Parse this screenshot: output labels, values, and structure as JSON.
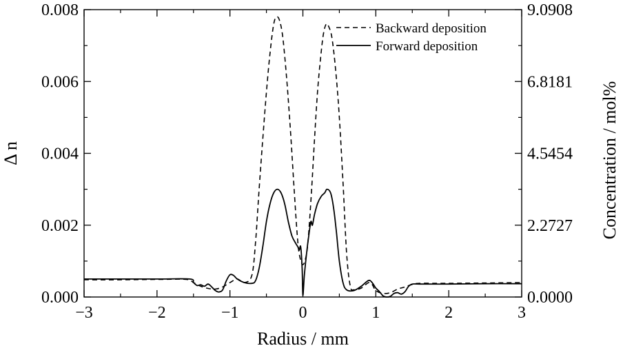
{
  "chart_data": {
    "type": "line",
    "xlabel": "Radius / mm",
    "ylabel": "Δ n",
    "ylabel_secondary": "Concentration / mol%",
    "xlim": [
      -3,
      3
    ],
    "ylim": [
      0,
      0.008
    ],
    "ylim_secondary": [
      0,
      9.0908
    ],
    "x_ticks": [
      -3,
      -2,
      -1,
      0,
      1,
      2,
      3
    ],
    "x_tick_labels": [
      "−3",
      "−2",
      "−1",
      "0",
      "1",
      "2",
      "3"
    ],
    "y_ticks": [
      0,
      0.002,
      0.004,
      0.006,
      0.008
    ],
    "y_tick_labels": [
      "0.000",
      "0.002",
      "0.004",
      "0.006",
      "0.008"
    ],
    "y2_ticks": [
      0,
      2.2727,
      4.5454,
      6.8181,
      9.0908
    ],
    "y2_tick_labels": [
      "0.0000",
      "2.2727",
      "4.5454",
      "6.8181",
      "9.0908"
    ],
    "grid": false,
    "legend_position": "top-right",
    "series": [
      {
        "name": "Backward deposition",
        "style": "dashed",
        "color": "#000000",
        "points": [
          [
            -3.0,
            0.00048
          ],
          [
            -2.5,
            0.00048
          ],
          [
            -2.0,
            0.00049
          ],
          [
            -1.6,
            0.00049
          ],
          [
            -1.5,
            0.0004
          ],
          [
            -1.4,
            0.0003
          ],
          [
            -1.3,
            0.00024
          ],
          [
            -1.2,
            0.00022
          ],
          [
            -1.1,
            0.00028
          ],
          [
            -1.0,
            0.0004
          ],
          [
            -0.9,
            0.0005
          ],
          [
            -0.8,
            0.0004
          ],
          [
            -0.7,
            0.0006
          ],
          [
            -0.65,
            0.0015
          ],
          [
            -0.6,
            0.003
          ],
          [
            -0.55,
            0.0044
          ],
          [
            -0.5,
            0.0057
          ],
          [
            -0.45,
            0.0068
          ],
          [
            -0.4,
            0.0076
          ],
          [
            -0.36,
            0.0078
          ],
          [
            -0.32,
            0.0077
          ],
          [
            -0.28,
            0.0073
          ],
          [
            -0.24,
            0.0065
          ],
          [
            -0.2,
            0.0055
          ],
          [
            -0.16,
            0.0043
          ],
          [
            -0.12,
            0.003
          ],
          [
            -0.08,
            0.0018
          ],
          [
            -0.05,
            0.0012
          ],
          [
            0.0,
            0.0009
          ],
          [
            0.05,
            0.0012
          ],
          [
            0.08,
            0.0018
          ],
          [
            0.12,
            0.003
          ],
          [
            0.16,
            0.0044
          ],
          [
            0.2,
            0.0057
          ],
          [
            0.24,
            0.0066
          ],
          [
            0.28,
            0.0073
          ],
          [
            0.32,
            0.0076
          ],
          [
            0.36,
            0.0075
          ],
          [
            0.4,
            0.0072
          ],
          [
            0.45,
            0.0063
          ],
          [
            0.5,
            0.005
          ],
          [
            0.55,
            0.0032
          ],
          [
            0.6,
            0.0012
          ],
          [
            0.65,
            0.0003
          ],
          [
            0.7,
            0.0002
          ],
          [
            0.8,
            0.00025
          ],
          [
            0.9,
            0.0004
          ],
          [
            0.95,
            0.00035
          ],
          [
            1.0,
            0.00018
          ],
          [
            1.1,
            0.0001
          ],
          [
            1.2,
            0.00012
          ],
          [
            1.3,
            0.00022
          ],
          [
            1.4,
            0.00028
          ],
          [
            1.5,
            0.00035
          ],
          [
            1.6,
            0.00038
          ],
          [
            2.0,
            0.00038
          ],
          [
            2.5,
            0.00039
          ],
          [
            3.0,
            0.0004
          ]
        ]
      },
      {
        "name": "Forward deposition",
        "style": "solid",
        "color": "#000000",
        "points": [
          [
            -3.0,
            0.0005
          ],
          [
            -2.5,
            0.0005
          ],
          [
            -2.0,
            0.0005
          ],
          [
            -1.55,
            0.0005
          ],
          [
            -1.5,
            0.0004
          ],
          [
            -1.45,
            0.00032
          ],
          [
            -1.4,
            0.00034
          ],
          [
            -1.35,
            0.0003
          ],
          [
            -1.3,
            0.00036
          ],
          [
            -1.25,
            0.00028
          ],
          [
            -1.2,
            0.00018
          ],
          [
            -1.15,
            0.00014
          ],
          [
            -1.1,
            0.0002
          ],
          [
            -1.05,
            0.00045
          ],
          [
            -1.0,
            0.00062
          ],
          [
            -0.95,
            0.0006
          ],
          [
            -0.9,
            0.0005
          ],
          [
            -0.8,
            0.0004
          ],
          [
            -0.7,
            0.00038
          ],
          [
            -0.65,
            0.00045
          ],
          [
            -0.6,
            0.0008
          ],
          [
            -0.55,
            0.0014
          ],
          [
            -0.5,
            0.0021
          ],
          [
            -0.45,
            0.0026
          ],
          [
            -0.4,
            0.0029
          ],
          [
            -0.35,
            0.003
          ],
          [
            -0.3,
            0.0029
          ],
          [
            -0.25,
            0.0026
          ],
          [
            -0.2,
            0.0021
          ],
          [
            -0.15,
            0.0017
          ],
          [
            -0.1,
            0.0015
          ],
          [
            -0.07,
            0.0014
          ],
          [
            -0.05,
            0.0013
          ],
          [
            -0.03,
            0.0014
          ],
          [
            -0.01,
            0.0008
          ],
          [
            0.0,
            5e-05
          ],
          [
            0.02,
            0.0006
          ],
          [
            0.05,
            0.0012
          ],
          [
            0.08,
            0.0017
          ],
          [
            0.11,
            0.0021
          ],
          [
            0.13,
            0.002
          ],
          [
            0.16,
            0.0023
          ],
          [
            0.2,
            0.0026
          ],
          [
            0.25,
            0.0028
          ],
          [
            0.3,
            0.0029
          ],
          [
            0.33,
            0.003
          ],
          [
            0.38,
            0.0029
          ],
          [
            0.42,
            0.0025
          ],
          [
            0.46,
            0.0018
          ],
          [
            0.5,
            0.001
          ],
          [
            0.55,
            0.0004
          ],
          [
            0.6,
            0.0002
          ],
          [
            0.7,
            0.00018
          ],
          [
            0.8,
            0.0003
          ],
          [
            0.9,
            0.00046
          ],
          [
            0.95,
            0.0004
          ],
          [
            1.0,
            0.00025
          ],
          [
            1.05,
            0.00015
          ],
          [
            1.1,
            3e-05
          ],
          [
            1.15,
            0.0
          ],
          [
            1.2,
            2e-05
          ],
          [
            1.25,
            0.0001
          ],
          [
            1.3,
            0.00012
          ],
          [
            1.35,
            8e-05
          ],
          [
            1.4,
            0.00015
          ],
          [
            1.45,
            0.0003
          ],
          [
            1.5,
            0.00036
          ],
          [
            1.6,
            0.00036
          ],
          [
            2.0,
            0.00036
          ],
          [
            2.5,
            0.00037
          ],
          [
            3.0,
            0.00037
          ]
        ]
      }
    ]
  }
}
